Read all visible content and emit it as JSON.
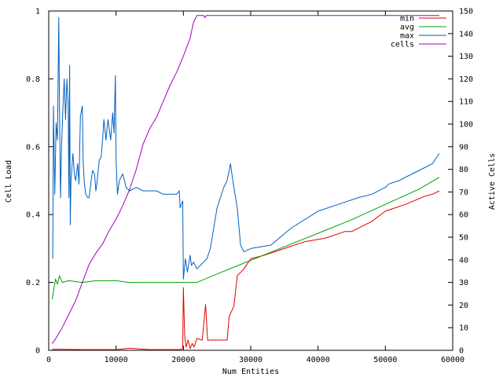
{
  "chart_data": {
    "type": "line",
    "xlabel": "Num Entities",
    "ylabel": "Cell Load",
    "y2label": "Active Cells",
    "xlim": [
      0,
      60000
    ],
    "ylim": [
      0,
      1
    ],
    "y2lim": [
      0,
      150
    ],
    "x_ticks": [
      0,
      10000,
      20000,
      30000,
      40000,
      50000,
      60000
    ],
    "y_ticks": [
      0,
      0.2,
      0.4,
      0.6,
      0.8,
      1
    ],
    "y2_ticks": [
      0,
      10,
      20,
      30,
      40,
      50,
      60,
      70,
      80,
      90,
      100,
      110,
      120,
      130,
      140,
      150
    ],
    "x_tick_labels": [
      "0",
      "10000",
      "20000",
      "30000",
      "40000",
      "50000",
      "60000"
    ],
    "y_tick_labels": [
      "0",
      "0.2",
      "0.4",
      "0.6",
      "0.8",
      "1"
    ],
    "y2_tick_labels": [
      "0",
      "10",
      "20",
      "30",
      "40",
      "50",
      "60",
      "70",
      "80",
      "90",
      "100",
      "110",
      "120",
      "130",
      "140",
      "150"
    ],
    "legend_position": "top-right",
    "grid": false,
    "series": [
      {
        "name": "min",
        "color": "#e00000",
        "axis": "left",
        "points": [
          [
            500,
            0.003
          ],
          [
            2000,
            0.003
          ],
          [
            5000,
            0.002
          ],
          [
            10000,
            0.002
          ],
          [
            12000,
            0.006
          ],
          [
            15000,
            0.002
          ],
          [
            19500,
            0.002
          ],
          [
            19900,
            0.005
          ],
          [
            20000,
            0.185
          ],
          [
            20200,
            0.04
          ],
          [
            20400,
            0.01
          ],
          [
            20700,
            0.03
          ],
          [
            21000,
            0.005
          ],
          [
            21300,
            0.02
          ],
          [
            21600,
            0.01
          ],
          [
            22000,
            0.035
          ],
          [
            22800,
            0.03
          ],
          [
            23300,
            0.135
          ],
          [
            23600,
            0.03
          ],
          [
            25000,
            0.03
          ],
          [
            26500,
            0.03
          ],
          [
            26800,
            0.1
          ],
          [
            27500,
            0.13
          ],
          [
            28000,
            0.22
          ],
          [
            29000,
            0.24
          ],
          [
            30000,
            0.27
          ],
          [
            32000,
            0.28
          ],
          [
            35000,
            0.3
          ],
          [
            38000,
            0.32
          ],
          [
            41000,
            0.33
          ],
          [
            44000,
            0.35
          ],
          [
            45000,
            0.35
          ],
          [
            48000,
            0.38
          ],
          [
            50000,
            0.41
          ],
          [
            53000,
            0.43
          ],
          [
            56000,
            0.455
          ],
          [
            57000,
            0.46
          ],
          [
            58000,
            0.47
          ]
        ]
      },
      {
        "name": "avg",
        "color": "#00a000",
        "axis": "left",
        "points": [
          [
            500,
            0.15
          ],
          [
            800,
            0.185
          ],
          [
            1000,
            0.21
          ],
          [
            1300,
            0.195
          ],
          [
            1600,
            0.22
          ],
          [
            2000,
            0.2
          ],
          [
            3000,
            0.205
          ],
          [
            5000,
            0.2
          ],
          [
            7000,
            0.205
          ],
          [
            10000,
            0.205
          ],
          [
            12000,
            0.2
          ],
          [
            15000,
            0.2
          ],
          [
            20000,
            0.2
          ],
          [
            22000,
            0.2
          ],
          [
            25000,
            0.225
          ],
          [
            30000,
            0.265
          ],
          [
            35000,
            0.305
          ],
          [
            40000,
            0.345
          ],
          [
            45000,
            0.385
          ],
          [
            50000,
            0.43
          ],
          [
            55000,
            0.475
          ],
          [
            58000,
            0.51
          ]
        ]
      },
      {
        "name": "max",
        "color": "#0060c0",
        "axis": "left",
        "points": [
          [
            600,
            0.27
          ],
          [
            700,
            0.72
          ],
          [
            900,
            0.46
          ],
          [
            1100,
            0.67
          ],
          [
            1300,
            0.62
          ],
          [
            1450,
            0.9
          ],
          [
            1500,
            0.98
          ],
          [
            1600,
            0.72
          ],
          [
            1750,
            0.45
          ],
          [
            1900,
            0.6
          ],
          [
            2100,
            0.71
          ],
          [
            2300,
            0.8
          ],
          [
            2500,
            0.68
          ],
          [
            2700,
            0.8
          ],
          [
            2900,
            0.72
          ],
          [
            3000,
            0.45
          ],
          [
            3100,
            0.84
          ],
          [
            3200,
            0.37
          ],
          [
            3300,
            0.5
          ],
          [
            3600,
            0.58
          ],
          [
            3800,
            0.52
          ],
          [
            4000,
            0.5
          ],
          [
            4300,
            0.55
          ],
          [
            4500,
            0.49
          ],
          [
            4700,
            0.69
          ],
          [
            5000,
            0.72
          ],
          [
            5100,
            0.56
          ],
          [
            5300,
            0.49
          ],
          [
            5500,
            0.46
          ],
          [
            5800,
            0.45
          ],
          [
            6000,
            0.45
          ],
          [
            6300,
            0.5
          ],
          [
            6500,
            0.53
          ],
          [
            6800,
            0.52
          ],
          [
            7000,
            0.47
          ],
          [
            7200,
            0.5
          ],
          [
            7500,
            0.56
          ],
          [
            7800,
            0.57
          ],
          [
            8000,
            0.62
          ],
          [
            8200,
            0.68
          ],
          [
            8500,
            0.62
          ],
          [
            8800,
            0.68
          ],
          [
            9000,
            0.65
          ],
          [
            9200,
            0.62
          ],
          [
            9500,
            0.7
          ],
          [
            9700,
            0.64
          ],
          [
            9900,
            0.81
          ],
          [
            10000,
            0.56
          ],
          [
            10200,
            0.46
          ],
          [
            10500,
            0.5
          ],
          [
            11000,
            0.52
          ],
          [
            11500,
            0.48
          ],
          [
            12000,
            0.47
          ],
          [
            13000,
            0.48
          ],
          [
            14000,
            0.47
          ],
          [
            15000,
            0.47
          ],
          [
            16000,
            0.47
          ],
          [
            17000,
            0.46
          ],
          [
            18000,
            0.46
          ],
          [
            19000,
            0.46
          ],
          [
            19400,
            0.47
          ],
          [
            19500,
            0.42
          ],
          [
            19900,
            0.44
          ],
          [
            20000,
            0.21
          ],
          [
            20300,
            0.27
          ],
          [
            20600,
            0.23
          ],
          [
            21000,
            0.28
          ],
          [
            21200,
            0.25
          ],
          [
            21500,
            0.26
          ],
          [
            22000,
            0.24
          ],
          [
            22500,
            0.25
          ],
          [
            23000,
            0.26
          ],
          [
            23500,
            0.27
          ],
          [
            24000,
            0.3
          ],
          [
            25000,
            0.42
          ],
          [
            26000,
            0.48
          ],
          [
            26500,
            0.5
          ],
          [
            27000,
            0.55
          ],
          [
            27200,
            0.52
          ],
          [
            27500,
            0.48
          ],
          [
            28000,
            0.42
          ],
          [
            28500,
            0.31
          ],
          [
            29000,
            0.29
          ],
          [
            30000,
            0.3
          ],
          [
            33000,
            0.31
          ],
          [
            36000,
            0.36
          ],
          [
            40000,
            0.41
          ],
          [
            43000,
            0.43
          ],
          [
            46000,
            0.45
          ],
          [
            48000,
            0.46
          ],
          [
            50000,
            0.48
          ],
          [
            50500,
            0.49
          ],
          [
            52000,
            0.5
          ],
          [
            55000,
            0.53
          ],
          [
            57000,
            0.55
          ],
          [
            58000,
            0.58
          ]
        ]
      },
      {
        "name": "cells",
        "color": "#a000c0",
        "axis": "right",
        "points": [
          [
            500,
            3
          ],
          [
            1000,
            5
          ],
          [
            2000,
            10
          ],
          [
            3000,
            16
          ],
          [
            4000,
            22
          ],
          [
            5000,
            30
          ],
          [
            6000,
            38
          ],
          [
            7000,
            43
          ],
          [
            8000,
            47
          ],
          [
            9000,
            53
          ],
          [
            10000,
            58
          ],
          [
            11000,
            64
          ],
          [
            12000,
            71
          ],
          [
            13000,
            80
          ],
          [
            14000,
            91
          ],
          [
            15000,
            98
          ],
          [
            16000,
            103
          ],
          [
            17000,
            110
          ],
          [
            18000,
            117
          ],
          [
            19000,
            123
          ],
          [
            20000,
            130
          ],
          [
            21000,
            138
          ],
          [
            21500,
            145
          ],
          [
            22000,
            148
          ],
          [
            23000,
            148
          ],
          [
            23200,
            147
          ],
          [
            23400,
            148
          ],
          [
            25000,
            148
          ],
          [
            30000,
            148
          ],
          [
            40000,
            148
          ],
          [
            50000,
            148
          ],
          [
            58000,
            148
          ]
        ]
      }
    ]
  }
}
